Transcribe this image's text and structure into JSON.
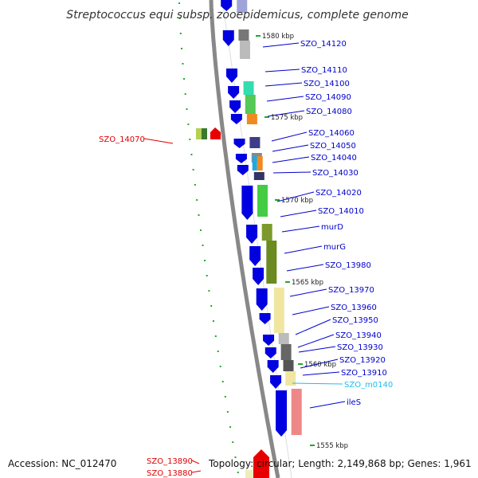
{
  "title": "Streptococcus equi subsp. zooepidemicus, complete genome",
  "accession": "Accession: NC_012470",
  "summary": "Topology: circular; Length: 2,149,868 bp; Genes: 1,961",
  "colors": {
    "backbone": "#888888",
    "forward_arrow": "#0000e0",
    "gene_link": "#0000cc",
    "highlight_link": "#e00000",
    "rna_link": "#22bbee",
    "tick_dash": "#22aa22"
  },
  "ticks": [
    "1580 kbp",
    "1575 kbp",
    "1570 kbp",
    "1565 kbp",
    "1560 kbp",
    "1555 kbp"
  ],
  "genes": [
    {
      "label": "SZO_14120",
      "color": "#0000cc"
    },
    {
      "label": "SZO_14110",
      "color": "#0000cc"
    },
    {
      "label": "SZO_14100",
      "color": "#0000cc"
    },
    {
      "label": "SZO_14090",
      "color": "#0000cc"
    },
    {
      "label": "SZO_14080",
      "color": "#0000cc"
    },
    {
      "label": "SZO_14060",
      "color": "#0000cc"
    },
    {
      "label": "SZO_14050",
      "color": "#0000cc"
    },
    {
      "label": "SZO_14040",
      "color": "#0000cc"
    },
    {
      "label": "SZO_14030",
      "color": "#0000cc"
    },
    {
      "label": "SZO_14020",
      "color": "#0000cc"
    },
    {
      "label": "SZO_14010",
      "color": "#0000cc"
    },
    {
      "label": "murD",
      "color": "#0000cc"
    },
    {
      "label": "murG",
      "color": "#0000cc"
    },
    {
      "label": "SZO_13980",
      "color": "#0000cc"
    },
    {
      "label": "SZO_13970",
      "color": "#0000cc"
    },
    {
      "label": "SZO_13960",
      "color": "#0000cc"
    },
    {
      "label": "SZO_13950",
      "color": "#0000cc"
    },
    {
      "label": "SZO_13940",
      "color": "#0000cc"
    },
    {
      "label": "SZO_13930",
      "color": "#0000cc"
    },
    {
      "label": "SZO_13920",
      "color": "#0000cc"
    },
    {
      "label": "SZO_13910",
      "color": "#0000cc"
    },
    {
      "label": "SZO_m0140",
      "color": "#22bbee"
    },
    {
      "label": "ileS",
      "color": "#0000cc"
    },
    {
      "label": "SZO_14070",
      "color": "#e00000"
    },
    {
      "label": "SZO_13890",
      "color": "#e00000"
    },
    {
      "label": "SZO_13880",
      "color": "#e00000"
    }
  ]
}
